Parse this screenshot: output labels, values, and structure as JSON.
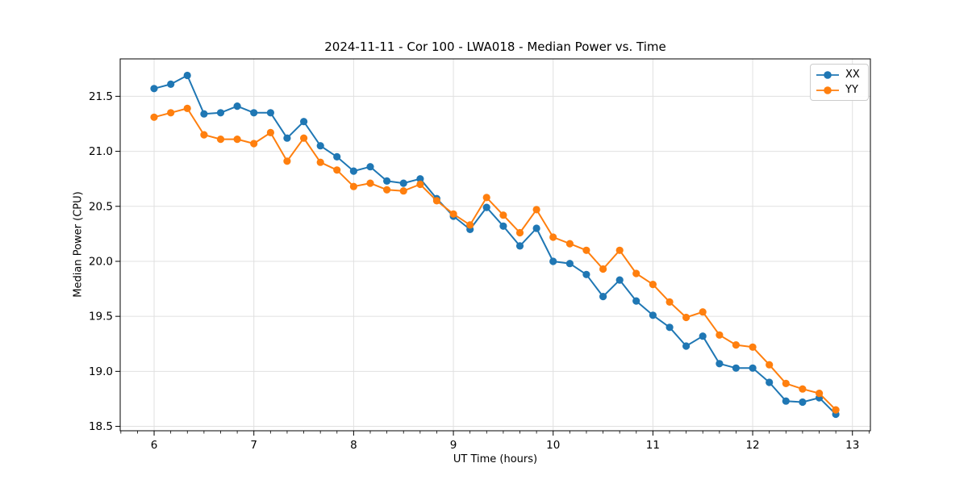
{
  "figure": {
    "background": "#ffffff",
    "grid_color": "#e0e0e0",
    "spine_color": "#000000",
    "text_color": "#000000"
  },
  "chart_data": {
    "type": "line",
    "title": "2024-11-11 - Cor 100 - LWA018 - Median Power vs. Time",
    "xlabel": "UT Time (hours)",
    "ylabel": "Median Power (CPU)",
    "xlim": [
      5.66,
      13.18
    ],
    "ylim": [
      18.46,
      21.84
    ],
    "grid": true,
    "legend_position": "upper right",
    "xticks": {
      "values": [
        6,
        7,
        8,
        9,
        10,
        11,
        12,
        13
      ],
      "labels": [
        "6",
        "7",
        "8",
        "9",
        "10",
        "11",
        "12",
        "13"
      ]
    },
    "yticks": {
      "values": [
        18.5,
        19.0,
        19.5,
        20.0,
        20.5,
        21.0,
        21.5
      ],
      "labels": [
        "18.5",
        "19.0",
        "19.5",
        "20.0",
        "20.5",
        "21.0",
        "21.5"
      ]
    },
    "x_minor_tick_step_hours": 0.1667,
    "x": [
      6.0,
      6.167,
      6.333,
      6.5,
      6.667,
      6.833,
      7.0,
      7.167,
      7.333,
      7.5,
      7.667,
      7.833,
      8.0,
      8.167,
      8.333,
      8.5,
      8.667,
      8.833,
      9.0,
      9.167,
      9.333,
      9.5,
      9.667,
      9.833,
      10.0,
      10.167,
      10.333,
      10.5,
      10.667,
      10.833,
      11.0,
      11.167,
      11.333,
      11.5,
      11.667,
      11.833,
      12.0,
      12.167,
      12.333,
      12.5,
      12.667,
      12.833
    ],
    "series": [
      {
        "name": "XX",
        "color": "#1f77b4",
        "values": [
          21.57,
          21.61,
          21.69,
          21.34,
          21.35,
          21.41,
          21.35,
          21.35,
          21.12,
          21.27,
          21.05,
          20.95,
          20.82,
          20.86,
          20.73,
          20.71,
          20.75,
          20.57,
          20.41,
          20.29,
          20.49,
          20.32,
          20.14,
          20.3,
          20.0,
          19.98,
          19.88,
          19.68,
          19.83,
          19.64,
          19.51,
          19.4,
          19.23,
          19.32,
          19.07,
          19.03,
          19.03,
          18.9,
          18.73,
          18.72,
          18.76,
          18.61
        ]
      },
      {
        "name": "YY",
        "color": "#ff7f0e",
        "values": [
          21.31,
          21.35,
          21.39,
          21.15,
          21.11,
          21.11,
          21.07,
          21.17,
          20.91,
          21.12,
          20.9,
          20.83,
          20.68,
          20.71,
          20.65,
          20.64,
          20.7,
          20.55,
          20.43,
          20.33,
          20.58,
          20.42,
          20.26,
          20.47,
          20.22,
          20.16,
          20.1,
          19.93,
          20.1,
          19.89,
          19.79,
          19.63,
          19.49,
          19.54,
          19.33,
          19.24,
          19.22,
          19.06,
          18.89,
          18.84,
          18.8,
          18.65
        ]
      }
    ]
  }
}
